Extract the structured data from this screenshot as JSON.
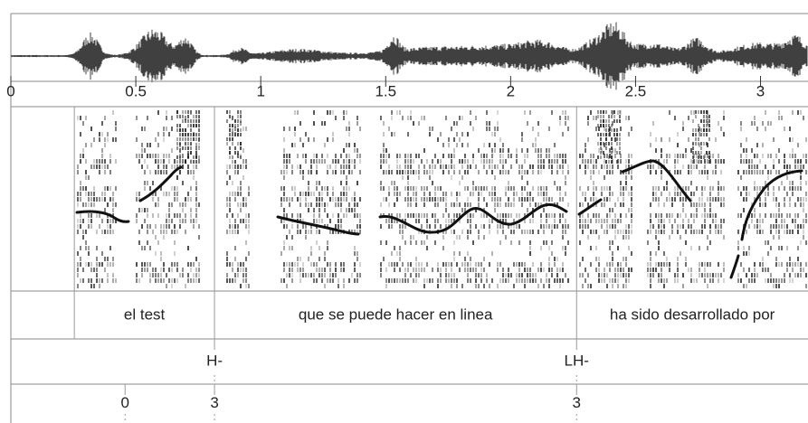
{
  "time_axis": {
    "xlim": [
      0,
      3.19
    ],
    "xticks": [
      0,
      0.5,
      1,
      1.5,
      2,
      2.5,
      3
    ]
  },
  "tiers": [
    {
      "boundaries": [
        0.254,
        0.815,
        2.264
      ],
      "labels": [
        null,
        "el test",
        "que se puede hacer en linea",
        "ha sido desarrollado por"
      ]
    },
    {
      "points": [
        {
          "time": 0.815,
          "label": "H-"
        },
        {
          "time": 2.264,
          "label": "LH-"
        }
      ]
    },
    {
      "points": [
        {
          "time": 0.457,
          "label": "0"
        },
        {
          "time": 0.815,
          "label": "3"
        },
        {
          "time": 2.264,
          "label": "3"
        }
      ]
    }
  ]
}
